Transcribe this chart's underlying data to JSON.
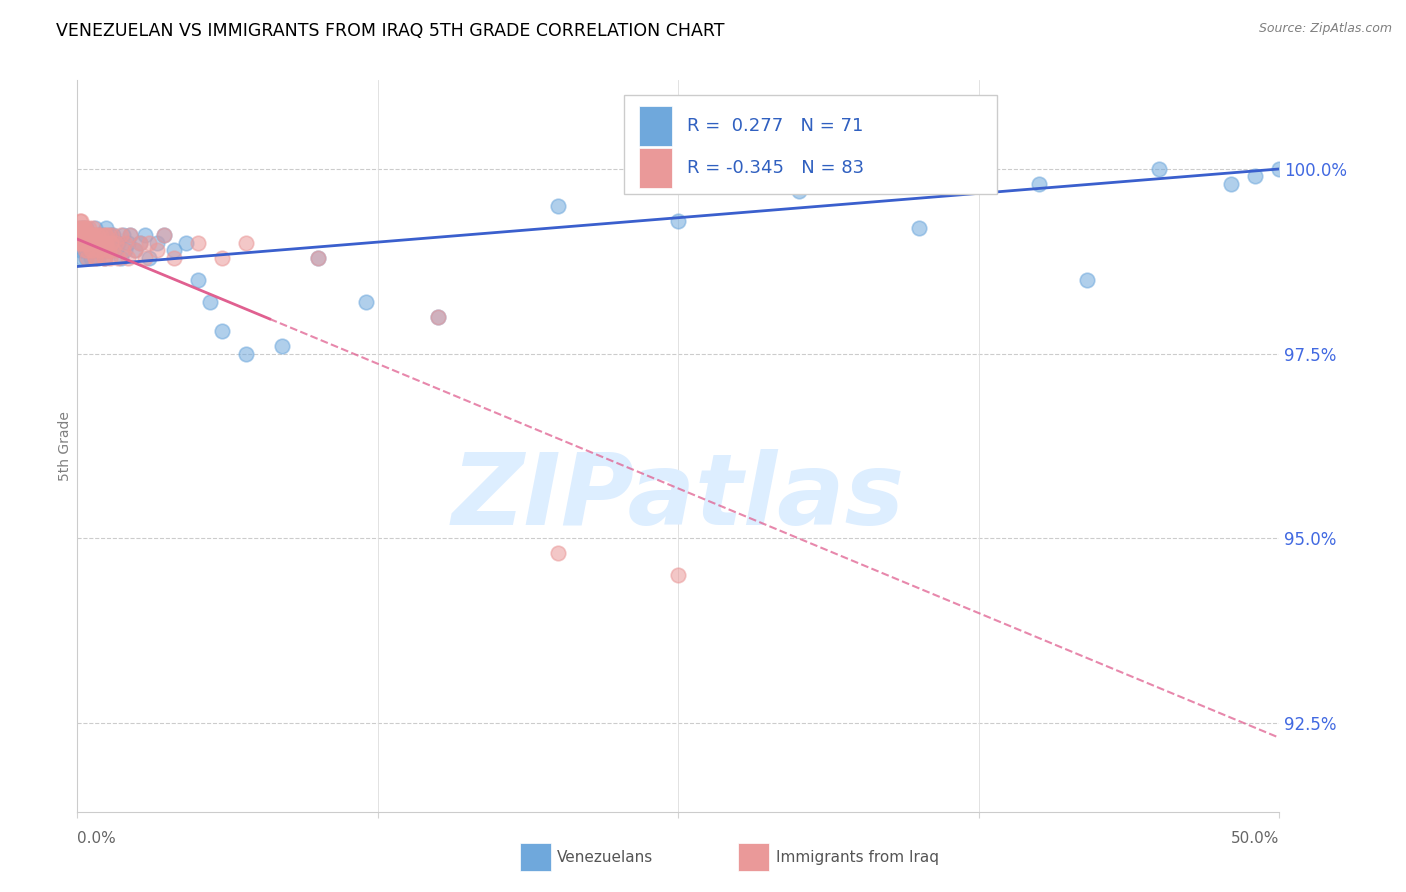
{
  "title": "VENEZUELAN VS IMMIGRANTS FROM IRAQ 5TH GRADE CORRELATION CHART",
  "source": "Source: ZipAtlas.com",
  "ylabel": "5th Grade",
  "ylabel_ticks": [
    "92.5%",
    "95.0%",
    "97.5%",
    "100.0%"
  ],
  "ylabel_values": [
    92.5,
    95.0,
    97.5,
    100.0
  ],
  "xmin": 0.0,
  "xmax": 50.0,
  "ymin": 91.3,
  "ymax": 101.2,
  "legend_blue_r": "0.277",
  "legend_blue_n": "71",
  "legend_pink_r": "-0.345",
  "legend_pink_n": "83",
  "legend_label_blue": "Venezuelans",
  "legend_label_pink": "Immigrants from Iraq",
  "blue_color": "#6fa8dc",
  "pink_color": "#ea9999",
  "trend_blue_color": "#3a5fcd",
  "trend_pink_color": "#e06090",
  "watermark_color": "#ddeeff",
  "background_color": "#ffffff",
  "blue_scatter_x": [
    0.05,
    0.08,
    0.1,
    0.12,
    0.15,
    0.18,
    0.2,
    0.22,
    0.25,
    0.28,
    0.3,
    0.32,
    0.35,
    0.38,
    0.4,
    0.42,
    0.45,
    0.48,
    0.5,
    0.55,
    0.6,
    0.65,
    0.7,
    0.75,
    0.8,
    0.85,
    0.9,
    0.95,
    1.0,
    1.05,
    1.1,
    1.15,
    1.2,
    1.25,
    1.3,
    1.35,
    1.4,
    1.5,
    1.6,
    1.7,
    1.8,
    1.9,
    2.0,
    2.1,
    2.2,
    2.4,
    2.6,
    2.8,
    3.0,
    3.3,
    3.6,
    4.0,
    4.5,
    5.0,
    5.5,
    6.0,
    7.0,
    8.5,
    10.0,
    12.0,
    15.0,
    20.0,
    25.0,
    30.0,
    35.0,
    40.0,
    45.0,
    48.0,
    49.0,
    50.0,
    42.0
  ],
  "blue_scatter_y": [
    99.1,
    99.0,
    99.2,
    98.9,
    99.1,
    99.0,
    98.8,
    99.2,
    99.0,
    98.9,
    99.1,
    99.0,
    98.8,
    99.2,
    98.9,
    99.0,
    99.1,
    98.9,
    99.0,
    98.8,
    99.1,
    99.0,
    98.9,
    99.2,
    99.0,
    98.8,
    99.1,
    99.0,
    98.9,
    99.1,
    99.0,
    98.8,
    99.2,
    99.0,
    98.9,
    99.1,
    99.0,
    99.1,
    98.9,
    99.0,
    98.8,
    99.1,
    98.9,
    99.0,
    99.1,
    98.9,
    99.0,
    99.1,
    98.8,
    99.0,
    99.1,
    98.9,
    99.0,
    98.5,
    98.2,
    97.8,
    97.5,
    97.6,
    98.8,
    98.2,
    98.0,
    99.5,
    99.3,
    99.7,
    99.2,
    99.8,
    100.0,
    99.8,
    99.9,
    100.0,
    98.5
  ],
  "pink_scatter_x": [
    0.02,
    0.04,
    0.06,
    0.08,
    0.1,
    0.12,
    0.15,
    0.18,
    0.2,
    0.22,
    0.25,
    0.28,
    0.3,
    0.32,
    0.35,
    0.38,
    0.4,
    0.42,
    0.45,
    0.48,
    0.5,
    0.55,
    0.6,
    0.65,
    0.7,
    0.75,
    0.8,
    0.85,
    0.9,
    0.95,
    1.0,
    1.05,
    1.1,
    1.15,
    1.2,
    1.25,
    1.3,
    1.35,
    1.4,
    1.45,
    1.5,
    1.6,
    1.7,
    1.8,
    1.9,
    2.0,
    2.1,
    2.2,
    2.4,
    2.6,
    2.8,
    3.0,
    3.3,
    3.6,
    4.0,
    5.0,
    6.0,
    7.0,
    10.0,
    15.0,
    20.0,
    25.0,
    0.15,
    0.2,
    0.25,
    0.3,
    0.35,
    0.4,
    0.45,
    0.5,
    0.55,
    0.6,
    0.65,
    0.7,
    0.75,
    0.8,
    0.85,
    0.9,
    1.0,
    1.1,
    1.2,
    1.3,
    1.4
  ],
  "pink_scatter_y": [
    99.1,
    99.2,
    99.0,
    99.1,
    99.3,
    99.0,
    99.2,
    99.1,
    99.0,
    99.2,
    99.1,
    99.0,
    99.2,
    98.9,
    99.1,
    99.0,
    98.8,
    99.1,
    99.0,
    99.2,
    99.0,
    99.1,
    98.9,
    99.0,
    99.1,
    98.8,
    99.0,
    99.1,
    99.0,
    98.9,
    99.1,
    99.0,
    98.8,
    99.1,
    99.0,
    98.9,
    99.1,
    98.8,
    99.0,
    99.1,
    98.9,
    99.0,
    98.8,
    99.1,
    98.9,
    99.0,
    98.8,
    99.1,
    98.9,
    99.0,
    98.8,
    99.0,
    98.9,
    99.1,
    98.8,
    99.0,
    98.8,
    99.0,
    98.8,
    98.0,
    94.8,
    94.5,
    99.3,
    99.1,
    99.0,
    99.2,
    99.0,
    98.9,
    99.1,
    99.0,
    98.9,
    99.1,
    99.2,
    99.0,
    98.8,
    99.1,
    99.0,
    98.9,
    99.0,
    98.8,
    99.1,
    98.9,
    99.0
  ]
}
